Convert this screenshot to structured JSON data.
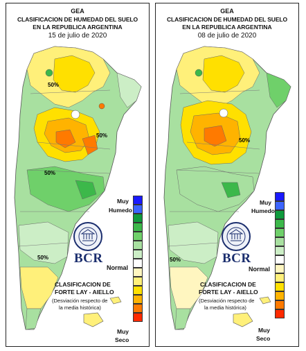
{
  "panels": [
    {
      "org": "GEA",
      "title_line1": "CLASIFICACION DE HUMEDAD DEL SUELO",
      "title_line2": "EN LA REPUBLICA ARGENTINA",
      "date": "15 de julio de 2020"
    },
    {
      "org": "GEA",
      "title_line1": "CLASIFICACION DE HUMEDAD DEL SUELO",
      "title_line2": "EN LA REPUBLICA ARGENTINA",
      "date": "08 de julio de 2020"
    }
  ],
  "legend": {
    "wet_label_1": "Muy",
    "wet_label_2": "Humedo",
    "normal_label": "Normal",
    "dry_label_1": "Muy",
    "dry_label_2": "Seco",
    "colors": [
      "#1a1aff",
      "#3c64ff",
      "#0f9a3c",
      "#3cb84a",
      "#6fd06a",
      "#a8e0a0",
      "#cceec6",
      "#ffffff",
      "#fff6c0",
      "#fff07a",
      "#ffe000",
      "#ffb300",
      "#ff7a00",
      "#ff2a00"
    ]
  },
  "branding": {
    "bcr": "BCR",
    "classification_line1": "CLASIFICACION DE",
    "classification_line2": "FORTE LAY - AIELLO",
    "description_line1": "(Desviación respecto de",
    "description_line2": "la media histórica)",
    "seal_text": "BOLSA DE COMERCIO DE ROSARIO"
  },
  "map_labels": [
    "50%",
    "50%",
    "50%",
    "50%",
    "50%",
    "50%"
  ]
}
